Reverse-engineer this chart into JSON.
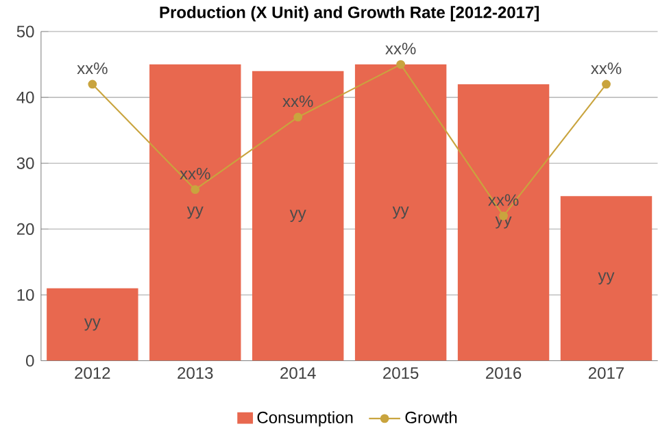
{
  "chart_data": {
    "type": "bar",
    "title": "Production (X Unit) and Growth Rate [2012-2017]",
    "categories": [
      "2012",
      "2013",
      "2014",
      "2015",
      "2016",
      "2017"
    ],
    "series": [
      {
        "name": "Consumption",
        "color": "#e8684f",
        "values": [
          11,
          45,
          44,
          45,
          42,
          25
        ],
        "value_labels": [
          "yy",
          "yy",
          "yy",
          "yy",
          "yy",
          "yy"
        ]
      },
      {
        "name": "Growth",
        "type": "line",
        "color": "#c9a43e",
        "marker": "circle",
        "values": [
          42,
          26,
          37,
          45,
          22,
          42
        ],
        "value_labels": [
          "xx%",
          "xx%",
          "xx%",
          "xx%",
          "xx%",
          "xx%"
        ]
      }
    ],
    "ylim": [
      0,
      50
    ],
    "yticks": [
      0,
      10,
      20,
      30,
      40,
      50
    ],
    "grid": "y",
    "legend": "bottom"
  }
}
